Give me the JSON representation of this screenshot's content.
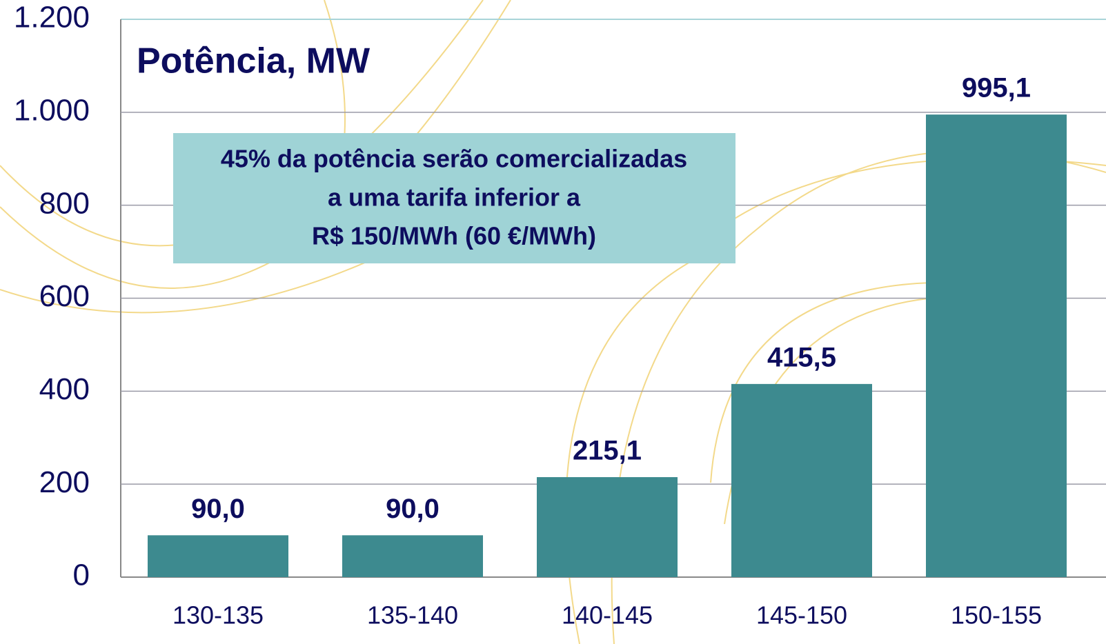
{
  "chart_data": {
    "type": "bar",
    "title": "Potência, MW",
    "annotation": [
      "45% da potência serão comercializadas",
      "a uma tarifa inferior a",
      "R$ 150/MWh (60 €/MWh)"
    ],
    "categories": [
      "130-135",
      "135-140",
      "140-145",
      "145-150",
      "150-155"
    ],
    "values": [
      90.0,
      90.0,
      215.1,
      415.5,
      995.1
    ],
    "value_labels": [
      "90,0",
      "90,0",
      "215,1",
      "415,5",
      "995,1"
    ],
    "color": "#3d8a8f",
    "ylim": [
      0,
      1200
    ],
    "yticks": [
      0,
      200,
      400,
      600,
      800,
      {
        "value": 1000,
        "label": "1.000"
      },
      {
        "value": 1200,
        "label": "1.200"
      }
    ],
    "grid": true
  }
}
